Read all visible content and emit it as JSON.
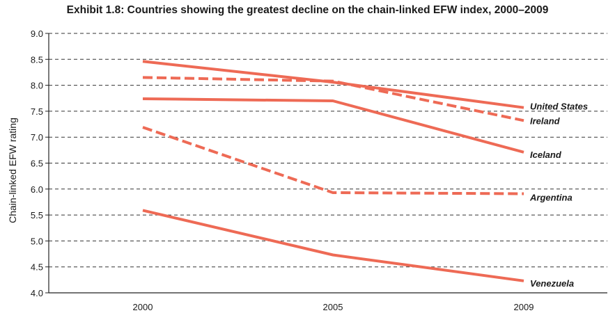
{
  "chart_data": {
    "type": "line",
    "title": "Exhibit 1.8: Countries showing the greatest decline on the chain-linked EFW index, 2000–2009",
    "xlabel": "",
    "ylabel": "Chain-linked EFW rating",
    "categories": [
      "2000",
      "2005",
      "2009"
    ],
    "y_ticks": [
      "4.0",
      "4.5",
      "5.0",
      "5.5",
      "6.0",
      "6.5",
      "7.0",
      "7.5",
      "8.0",
      "8.5",
      "9.0"
    ],
    "ylim": [
      4.0,
      9.0
    ],
    "grid": "horizontal dashed",
    "series": [
      {
        "name": "United States",
        "values": [
          8.46,
          8.06,
          7.57
        ],
        "style": "solid"
      },
      {
        "name": "Ireland",
        "values": [
          8.15,
          8.08,
          7.32
        ],
        "style": "dashed"
      },
      {
        "name": "Iceland",
        "values": [
          7.74,
          7.7,
          6.71
        ],
        "style": "solid"
      },
      {
        "name": "Argentina",
        "values": [
          7.19,
          5.93,
          5.91
        ],
        "style": "dashed"
      },
      {
        "name": "Venezuela",
        "values": [
          5.59,
          4.73,
          4.23
        ],
        "style": "solid"
      }
    ],
    "line_color": "#ee6a55"
  }
}
